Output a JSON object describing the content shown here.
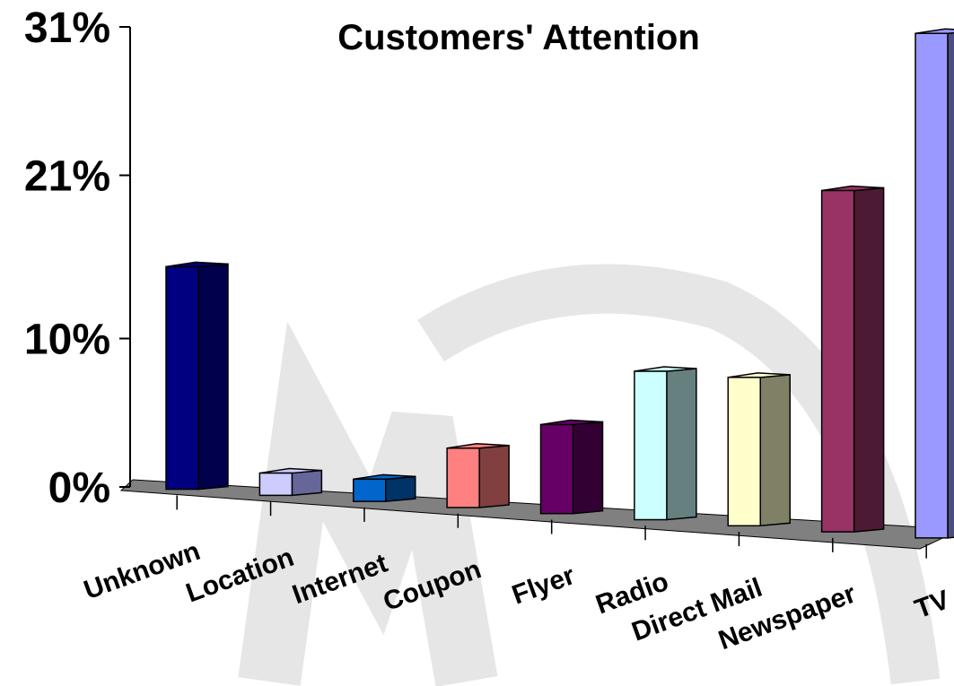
{
  "chart_data": {
    "type": "bar",
    "title": "Customers' Attention",
    "categories": [
      "Unknown",
      "Location",
      "Internet",
      "Coupon",
      "Flyer",
      "Radio",
      "Direct Mail",
      "Newspaper",
      "TV"
    ],
    "values": [
      15,
      1.5,
      1.5,
      4,
      6,
      10,
      10,
      23,
      34
    ],
    "y_ticks": [
      "0%",
      "10%",
      "21%",
      "31%"
    ],
    "y_tick_values": [
      0,
      10,
      21,
      31
    ],
    "ylim": [
      0,
      31
    ],
    "grid": false,
    "legend": "none",
    "colors": {
      "fronts": [
        "#000080",
        "#ccccff",
        "#0066cc",
        "#ff8080",
        "#660066",
        "#ccffff",
        "#ffffcc",
        "#993366",
        "#9999ff"
      ],
      "sides": [
        "#00004d",
        "#666699",
        "#003366",
        "#804040",
        "#330033",
        "#668080",
        "#808066",
        "#4d1a33",
        "#4d4d80"
      ],
      "floor": "#808080",
      "watermark": "#e6e6e6"
    }
  }
}
